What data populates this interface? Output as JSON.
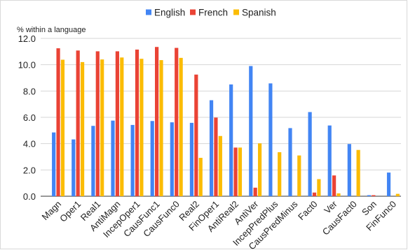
{
  "chart_data": {
    "type": "bar",
    "ylabel": "% within a language",
    "ylim": [
      0,
      12
    ],
    "yticks": [
      "0.0",
      "2.0",
      "4.0",
      "6.0",
      "8.0",
      "10.0",
      "12.0"
    ],
    "grid": true,
    "legend_position": "top",
    "categories": [
      "Magn",
      "Oper1",
      "Real1",
      "AntiMagn",
      "IncepOper1",
      "CausFunc1",
      "CausFunc0",
      "Real2",
      "FinOper1",
      "AntiReal2",
      "AntiVer",
      "IncepPredPlus",
      "CausPredMinus",
      "Fact0",
      "Ver",
      "CausFact0",
      "Son",
      "FinFunc0"
    ],
    "series": [
      {
        "name": "English",
        "color": "#4285f4",
        "values": [
          4.85,
          4.32,
          5.35,
          5.75,
          5.42,
          5.72,
          5.62,
          5.58,
          7.3,
          8.5,
          9.9,
          8.58,
          5.18,
          6.4,
          5.38,
          3.97,
          0.08,
          1.8
        ]
      },
      {
        "name": "French",
        "color": "#ea4335",
        "values": [
          11.25,
          11.08,
          11.02,
          11.02,
          11.15,
          11.35,
          11.28,
          9.25,
          5.98,
          3.7,
          0.65,
          0,
          0,
          0.28,
          1.58,
          0,
          0.08,
          0
        ]
      },
      {
        "name": "Spanish",
        "color": "#fbbc04",
        "values": [
          10.38,
          10.2,
          10.4,
          10.55,
          10.45,
          10.35,
          10.52,
          2.92,
          4.58,
          3.7,
          4.02,
          3.35,
          3.1,
          1.3,
          0.22,
          3.52,
          0,
          0.18
        ]
      }
    ]
  }
}
